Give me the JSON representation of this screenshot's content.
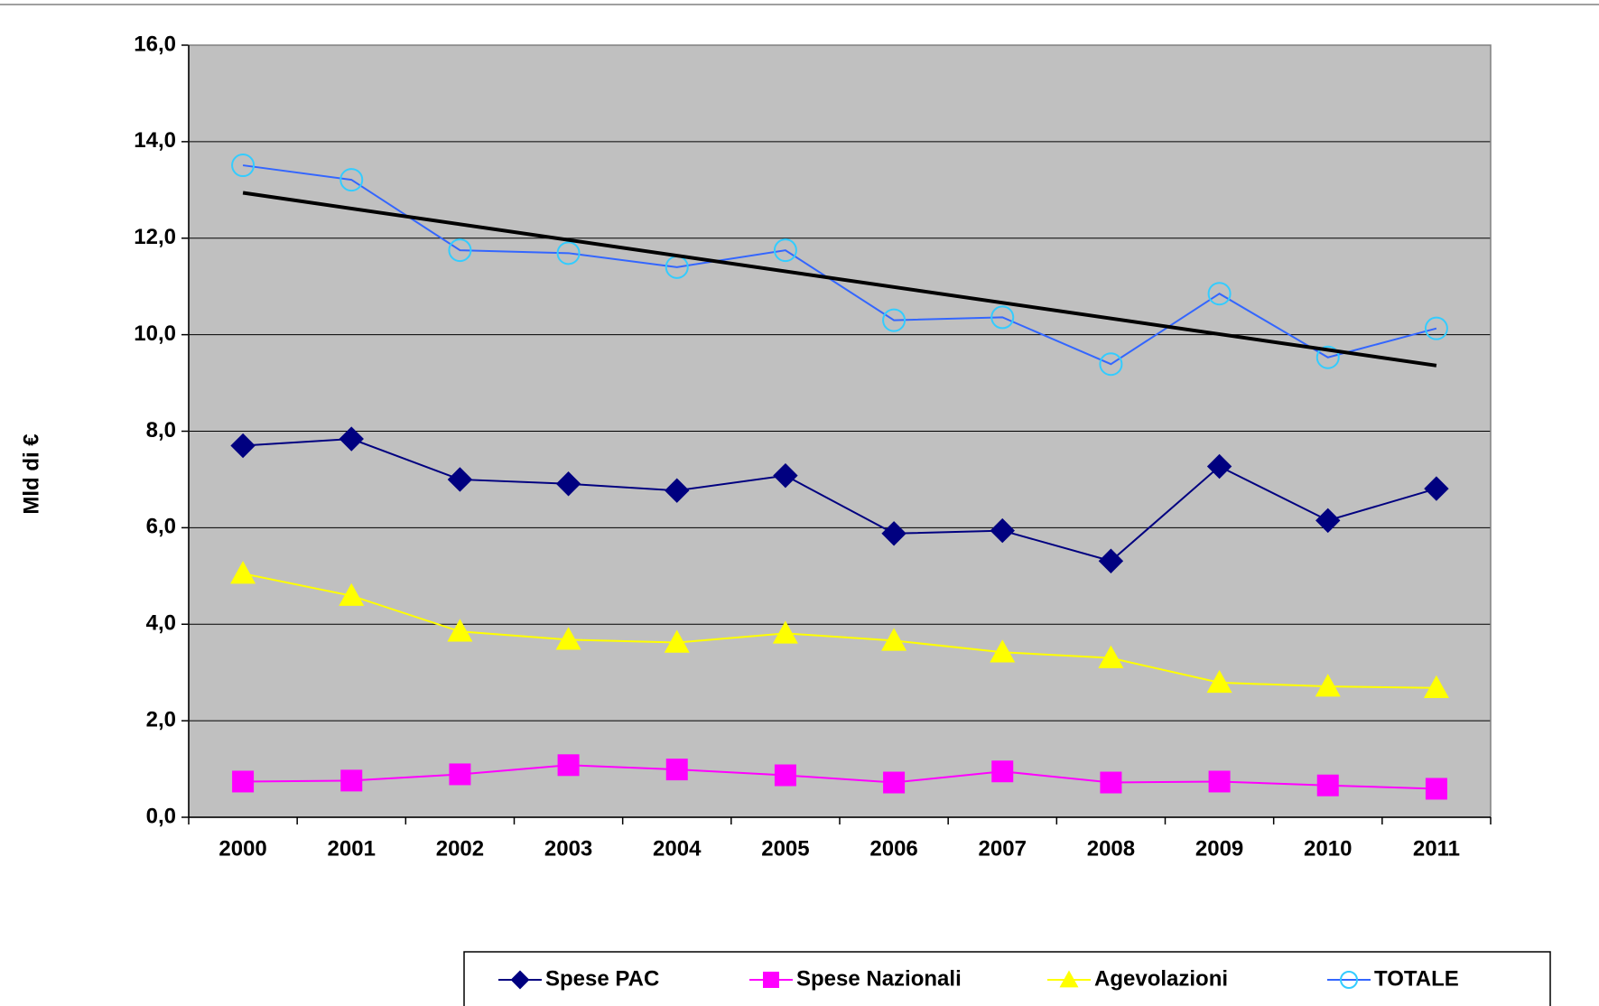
{
  "chart_data": {
    "type": "line",
    "y_label": "Mld di €",
    "categories": [
      "2000",
      "2001",
      "2002",
      "2003",
      "2004",
      "2005",
      "2006",
      "2007",
      "2008",
      "2009",
      "2010",
      "2011"
    ],
    "series": [
      {
        "name": "Spese PAC",
        "color": "#000080",
        "marker": "diamond",
        "marker_color": "#000080",
        "values": [
          7.7,
          7.84,
          7.0,
          6.91,
          6.77,
          7.08,
          5.88,
          5.94,
          5.31,
          7.27,
          6.15,
          6.81
        ]
      },
      {
        "name": "Spese Nazionali",
        "color": "#ff00ff",
        "marker": "square",
        "marker_color": "#ff00ff",
        "values": [
          0.74,
          0.76,
          0.89,
          1.08,
          0.99,
          0.87,
          0.72,
          0.95,
          0.72,
          0.74,
          0.66,
          0.59
        ]
      },
      {
        "name": "Agevolazioni",
        "color": "#ffff00",
        "marker": "triangle",
        "marker_color": "#ffff00",
        "values": [
          5.05,
          4.59,
          3.85,
          3.68,
          3.62,
          3.81,
          3.66,
          3.42,
          3.3,
          2.79,
          2.71,
          2.68
        ]
      },
      {
        "name": "TOTALE",
        "color": "#3366ff",
        "marker": "circle",
        "marker_color": "#33ccff",
        "values": [
          13.51,
          13.21,
          11.75,
          11.69,
          11.4,
          11.75,
          10.3,
          10.36,
          9.39,
          10.85,
          9.53,
          10.13
        ]
      }
    ],
    "trendline": {
      "color": "#000000",
      "values": [
        12.94,
        9.36
      ]
    },
    "ylim": [
      0,
      16
    ],
    "yticks": [
      {
        "value": 0,
        "label": "0,0"
      },
      {
        "value": 2,
        "label": "2,0"
      },
      {
        "value": 4,
        "label": "4,0"
      },
      {
        "value": 6,
        "label": "6,0"
      },
      {
        "value": 8,
        "label": "8,0"
      },
      {
        "value": 10,
        "label": "10,0"
      },
      {
        "value": 12,
        "label": "12,0"
      },
      {
        "value": 14,
        "label": "14,0"
      },
      {
        "value": 16,
        "label": "16,0"
      }
    ],
    "grid": true,
    "plot_background": "#c0c0c0",
    "legend": "bottom"
  }
}
